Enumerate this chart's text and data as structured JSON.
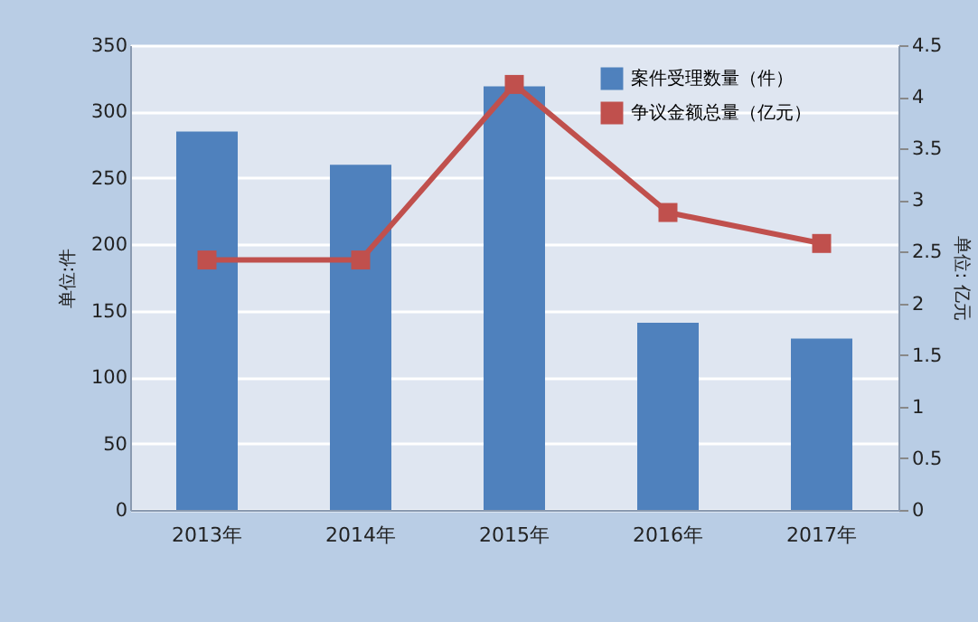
{
  "chart_data": {
    "type": "bar",
    "categories": [
      "2013年",
      "2014年",
      "2015年",
      "2016年",
      "2017年"
    ],
    "series": [
      {
        "name": "案件受理数量（件）",
        "color": "#4f81bd",
        "values": [
          285,
          260,
          319,
          141,
          129
        ]
      },
      {
        "name": "争议金额总量（亿元）",
        "type": "line",
        "axis": "y2",
        "color": "#c0504d",
        "values": [
          2.42,
          2.42,
          4.12,
          2.88,
          2.58
        ]
      }
    ],
    "ylabel": "单位:件",
    "y2label": "单位: 亿元",
    "ylim": [
      0,
      350
    ],
    "yticks": [
      0,
      50,
      100,
      150,
      200,
      250,
      300,
      350
    ],
    "y2lim": [
      0,
      4.5
    ],
    "y2ticks": [
      0,
      0.5,
      1,
      1.5,
      2,
      2.5,
      3,
      3.5,
      4,
      4.5
    ],
    "grid": "y",
    "legend": "top right",
    "marker": "square",
    "line_style": "solid"
  }
}
